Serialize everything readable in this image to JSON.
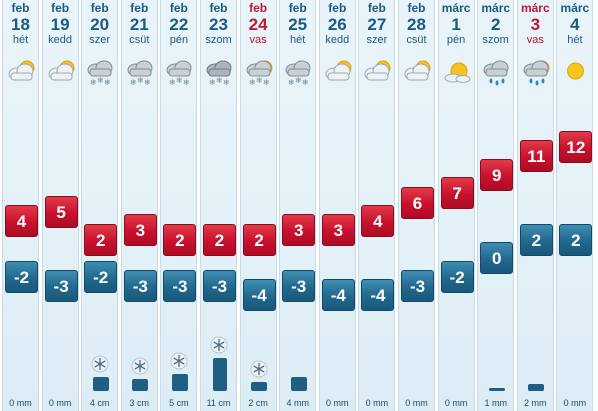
{
  "days": [
    {
      "month": "feb",
      "day": "18",
      "weekday": "hét",
      "icon": "cloudy-partly-sunny-icon",
      "max": "4",
      "min": "-2",
      "precip_label": "0 mm",
      "precip_amount": 0,
      "precip_type": "none"
    },
    {
      "month": "feb",
      "day": "19",
      "weekday": "kedd",
      "icon": "cloudy-partly-sunny-icon",
      "max": "5",
      "min": "-3",
      "precip_label": "0 mm",
      "precip_amount": 0,
      "precip_type": "none"
    },
    {
      "month": "feb",
      "day": "20",
      "weekday": "szer",
      "icon": "cloud-snow-icon",
      "max": "2",
      "min": "-2",
      "precip_label": "4 cm",
      "precip_amount": 4,
      "precip_type": "snow"
    },
    {
      "month": "feb",
      "day": "21",
      "weekday": "csüt",
      "icon": "cloud-snow-icon",
      "max": "3",
      "min": "-3",
      "precip_label": "3 cm",
      "precip_amount": 3,
      "precip_type": "snow"
    },
    {
      "month": "feb",
      "day": "22",
      "weekday": "pén",
      "icon": "cloud-snow-icon",
      "max": "2",
      "min": "-3",
      "precip_label": "5 cm",
      "precip_amount": 5,
      "precip_type": "snow"
    },
    {
      "month": "feb",
      "day": "23",
      "weekday": "szom",
      "icon": "cloud-heavy-snow-icon",
      "max": "2",
      "min": "-3",
      "precip_label": "11 cm",
      "precip_amount": 11,
      "precip_type": "snow"
    },
    {
      "month": "feb",
      "day": "24",
      "weekday": "vas",
      "icon": "sun-cloud-snow-icon",
      "max": "2",
      "min": "-4",
      "precip_label": "2 cm",
      "precip_amount": 2,
      "precip_type": "snow",
      "sunday": true
    },
    {
      "month": "feb",
      "day": "25",
      "weekday": "hét",
      "icon": "cloud-snow-icon",
      "max": "3",
      "min": "-3",
      "precip_label": "4 mm",
      "precip_amount": 4,
      "precip_type": "mm"
    },
    {
      "month": "feb",
      "day": "26",
      "weekday": "kedd",
      "icon": "cloudy-partly-sunny-icon",
      "max": "3",
      "min": "-4",
      "precip_label": "0 mm",
      "precip_amount": 0,
      "precip_type": "none"
    },
    {
      "month": "feb",
      "day": "27",
      "weekday": "szer",
      "icon": "cloudy-partly-sunny-icon",
      "max": "4",
      "min": "-4",
      "precip_label": "0 mm",
      "precip_amount": 0,
      "precip_type": "none"
    },
    {
      "month": "feb",
      "day": "28",
      "weekday": "csüt",
      "icon": "cloudy-partly-sunny-icon",
      "max": "6",
      "min": "-3",
      "precip_label": "0 mm",
      "precip_amount": 0,
      "precip_type": "none"
    },
    {
      "month": "márc",
      "day": "1",
      "weekday": "pén",
      "icon": "sun-behind-cloud-icon",
      "max": "7",
      "min": "-2",
      "precip_label": "0 mm",
      "precip_amount": 0,
      "precip_type": "none"
    },
    {
      "month": "márc",
      "day": "2",
      "weekday": "szom",
      "icon": "cloud-rain-icon",
      "max": "9",
      "min": "0",
      "precip_label": "1 mm",
      "precip_amount": 1,
      "precip_type": "mm"
    },
    {
      "month": "márc",
      "day": "3",
      "weekday": "vas",
      "icon": "sun-cloud-rain-icon",
      "max": "11",
      "min": "2",
      "precip_label": "2 mm",
      "precip_amount": 2,
      "precip_type": "mm",
      "sunday": true
    },
    {
      "month": "márc",
      "day": "4",
      "weekday": "hét",
      "icon": "sun-icon",
      "max": "12",
      "min": "2",
      "precip_label": "0 mm",
      "precip_amount": 0,
      "precip_type": "none"
    }
  ]
}
